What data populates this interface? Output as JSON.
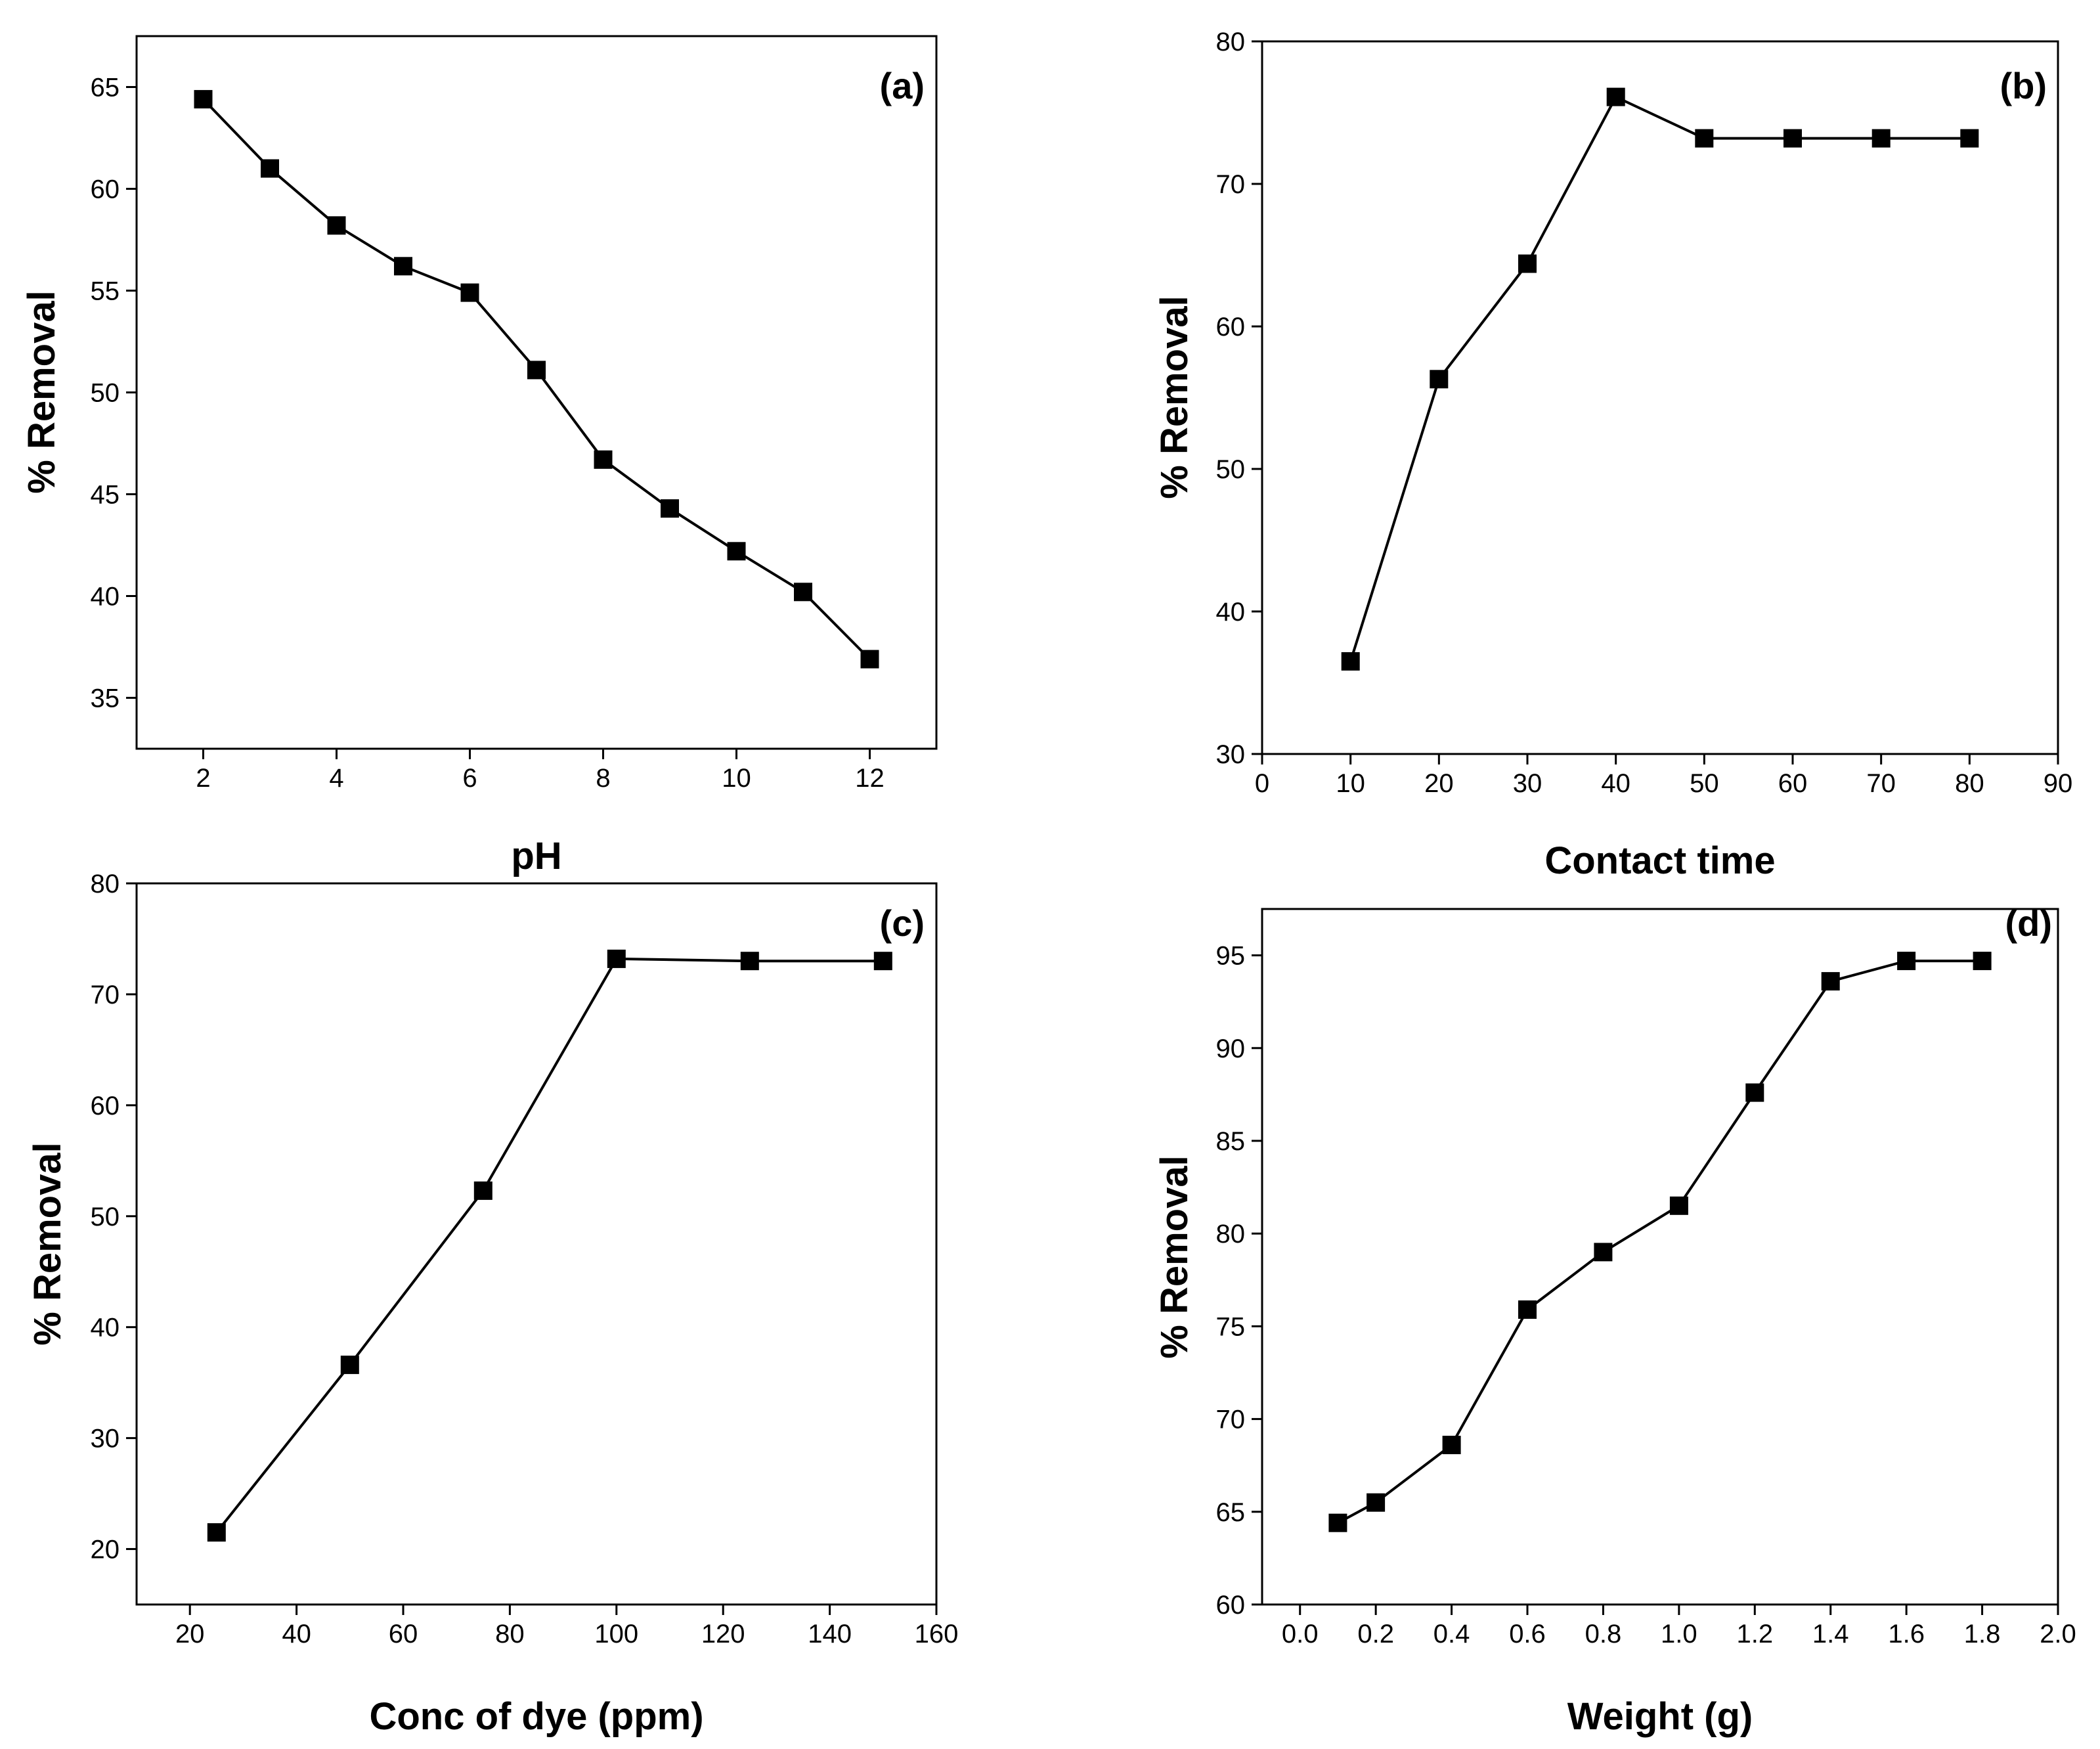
{
  "figure": {
    "marker_color": "#000000",
    "line_color": "#000000",
    "background": "#ffffff"
  },
  "chart_data": [
    {
      "type": "line",
      "panel_label": "(a)",
      "title": "",
      "xlabel": "pH",
      "ylabel": "% Removal",
      "xlim": [
        1,
        13
      ],
      "ylim": [
        32.5,
        67.5
      ],
      "xticks": [
        2,
        4,
        6,
        8,
        10,
        12
      ],
      "yticks": [
        35,
        40,
        45,
        50,
        55,
        60,
        65
      ],
      "xtick_labels": [
        "2",
        "4",
        "6",
        "8",
        "10",
        "12"
      ],
      "ytick_labels": [
        "35",
        "40",
        "45",
        "50",
        "55",
        "60",
        "65"
      ],
      "grid": false,
      "marker": "square",
      "series": [
        {
          "name": "% Removal",
          "x": [
            2,
            3,
            4,
            5,
            6,
            7,
            8,
            9,
            10,
            11,
            12
          ],
          "y": [
            64.4,
            61.0,
            58.2,
            56.2,
            54.9,
            51.1,
            46.7,
            44.3,
            42.2,
            40.2,
            36.9
          ]
        }
      ]
    },
    {
      "type": "line",
      "panel_label": "(b)",
      "title": "",
      "xlabel": "Contact time",
      "ylabel": "% Removal",
      "xlim": [
        0,
        90
      ],
      "ylim": [
        30,
        80
      ],
      "xticks": [
        0,
        10,
        20,
        30,
        40,
        50,
        60,
        70,
        80,
        90
      ],
      "yticks": [
        30,
        40,
        50,
        60,
        70,
        80
      ],
      "xtick_labels": [
        "0",
        "10",
        "20",
        "30",
        "40",
        "50",
        "60",
        "70",
        "80",
        "90"
      ],
      "ytick_labels": [
        "30",
        "40",
        "50",
        "60",
        "70",
        "80"
      ],
      "grid": false,
      "marker": "square",
      "series": [
        {
          "name": "% Removal",
          "x": [
            10,
            20,
            30,
            40,
            50,
            60,
            70,
            80
          ],
          "y": [
            36.5,
            56.3,
            64.4,
            76.1,
            73.2,
            73.2,
            73.2,
            73.2
          ]
        }
      ]
    },
    {
      "type": "line",
      "panel_label": "(c)",
      "title": "",
      "xlabel": "Conc of dye (ppm)",
      "ylabel": "% Removal",
      "xlim": [
        10,
        160
      ],
      "ylim": [
        15,
        80
      ],
      "xticks": [
        20,
        40,
        60,
        80,
        100,
        120,
        140,
        160
      ],
      "yticks": [
        20,
        30,
        40,
        50,
        60,
        70,
        80
      ],
      "xtick_labels": [
        "20",
        "40",
        "60",
        "80",
        "100",
        "120",
        "140",
        "160"
      ],
      "ytick_labels": [
        "20",
        "30",
        "40",
        "50",
        "60",
        "70",
        "80"
      ],
      "grid": false,
      "marker": "square",
      "series": [
        {
          "name": "% Removal",
          "x": [
            25,
            50,
            75,
            100,
            125,
            150
          ],
          "y": [
            21.5,
            36.6,
            52.3,
            73.2,
            73.0,
            73.0
          ]
        }
      ]
    },
    {
      "type": "line",
      "panel_label": "(d)",
      "title": "",
      "xlabel": "Weight (g)",
      "ylabel": "% Removal",
      "xlim": [
        -0.1,
        2.0
      ],
      "ylim": [
        60,
        97.5
      ],
      "xticks": [
        0.0,
        0.2,
        0.4,
        0.6,
        0.8,
        1.0,
        1.2,
        1.4,
        1.6,
        1.8,
        2.0
      ],
      "yticks": [
        60,
        65,
        70,
        75,
        80,
        85,
        90,
        95
      ],
      "xtick_labels": [
        "0.0",
        "0.2",
        "0.4",
        "0.6",
        "0.8",
        "1.0",
        "1.2",
        "1.4",
        "1.6",
        "1.8",
        "2.0"
      ],
      "ytick_labels": [
        "60",
        "65",
        "70",
        "75",
        "80",
        "85",
        "90",
        "95"
      ],
      "grid": false,
      "marker": "square",
      "series": [
        {
          "name": "% Removal",
          "x": [
            0.1,
            0.2,
            0.4,
            0.6,
            0.8,
            1.0,
            1.2,
            1.4,
            1.6,
            1.8
          ],
          "y": [
            64.4,
            65.5,
            68.6,
            75.9,
            79.0,
            81.5,
            87.6,
            93.6,
            94.7,
            94.7
          ]
        }
      ]
    }
  ]
}
